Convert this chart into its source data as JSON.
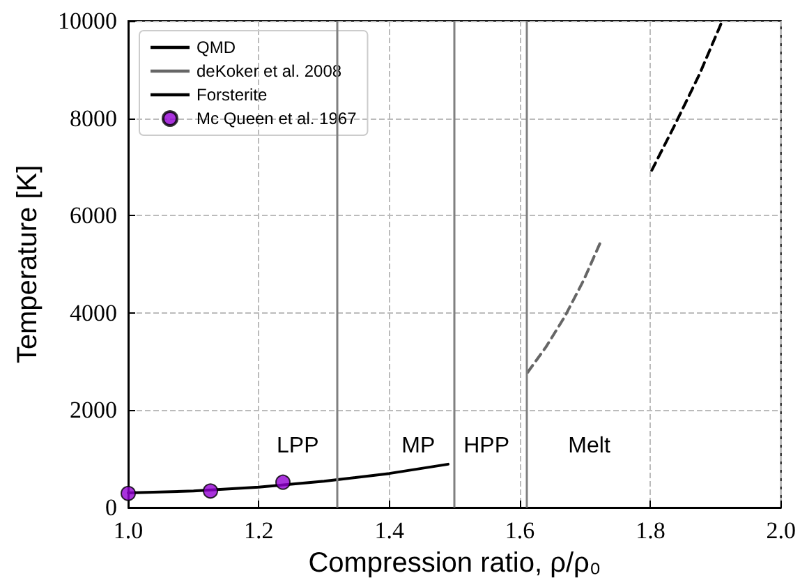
{
  "chart_data": {
    "type": "line",
    "xlabel": "Compression ratio, ρ/ρ₀",
    "ylabel": "Temperature [K]",
    "xlim": [
      1.0,
      2.0
    ],
    "xticks": [
      {
        "value": 1.0,
        "label": "1.0"
      },
      {
        "value": 1.2,
        "label": "1.2"
      },
      {
        "value": 1.4,
        "label": "1.4"
      },
      {
        "value": 1.6,
        "label": "1.6"
      },
      {
        "value": 1.8,
        "label": "1.8"
      },
      {
        "value": 2.0,
        "label": "2.0"
      }
    ],
    "ylim": [
      0,
      10000
    ],
    "yticks": [
      0,
      2000,
      4000,
      6000,
      8000,
      10000
    ],
    "grid": true,
    "legend": "top left",
    "series": [
      {
        "name": "QMD",
        "color": "#000000",
        "line_style": "dashed",
        "marker": "none",
        "x": [
          1.802,
          1.838,
          1.875,
          1.91
        ],
        "values": [
          6930,
          7880,
          8900,
          10000
        ]
      },
      {
        "name": "deKoker et al. 2008",
        "color": "#666666",
        "line_style": "dashed",
        "marker": "none",
        "x": [
          1.612,
          1.64,
          1.669,
          1.698,
          1.725
        ],
        "values": [
          2780,
          3300,
          3930,
          4680,
          5500
        ]
      },
      {
        "name": "Forsterite",
        "color": "#000000",
        "line_style": "solid",
        "marker": "none",
        "x": [
          1.0,
          1.1,
          1.2,
          1.3,
          1.4,
          1.49
        ],
        "values": [
          300,
          340,
          420,
          540,
          700,
          890
        ]
      },
      {
        "name": "Mc Queen et al. 1967",
        "type": "scatter",
        "color": "#9400d3",
        "marker": "circle",
        "x": [
          1.0,
          1.126,
          1.237
        ],
        "values": [
          290,
          340,
          520
        ]
      }
    ],
    "ref_lines": [
      {
        "axis": "x",
        "value": 1.322,
        "color": "#808080"
      },
      {
        "axis": "x",
        "value": 1.5,
        "color": "#808080"
      },
      {
        "axis": "x",
        "value": 1.614,
        "color": "#808080"
      }
    ],
    "annotations": [
      "LPP",
      "MP",
      "HPP",
      "Melt"
    ]
  }
}
